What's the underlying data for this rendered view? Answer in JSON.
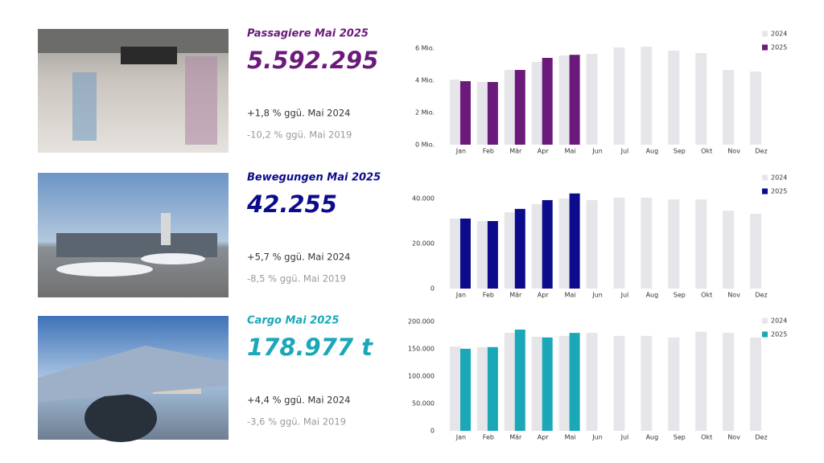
{
  "chart_data": [
    {
      "type": "bar",
      "title": "Passagiere Mai 2025",
      "headline": "5.592.295",
      "color": "#6b1a7b",
      "comparisons": [
        "+1,8 % ggü. Mai 2024",
        "-10,2 % ggü. Mai 2019"
      ],
      "categories": [
        "Jan",
        "Feb",
        "Mär",
        "Apr",
        "Mai",
        "Jun",
        "Jul",
        "Aug",
        "Sep",
        "Okt",
        "Nov",
        "Dez"
      ],
      "series": [
        {
          "name": "2024",
          "color": "#e6e6ea",
          "values": [
            4.05,
            3.9,
            4.65,
            5.15,
            5.55,
            5.65,
            6.05,
            6.1,
            5.85,
            5.7,
            4.65,
            4.55
          ]
        },
        {
          "name": "2025",
          "color": "#6b1a7b",
          "values": [
            3.95,
            3.9,
            4.65,
            5.4,
            5.59,
            null,
            null,
            null,
            null,
            null,
            null,
            null
          ]
        }
      ],
      "ylim": [
        0,
        6.6
      ],
      "yticks": [
        {
          "value": 0,
          "label": "0 Mio."
        },
        {
          "value": 2,
          "label": "2 Mio."
        },
        {
          "value": 4,
          "label": "4 Mio."
        },
        {
          "value": 6,
          "label": "6 Mio."
        }
      ]
    },
    {
      "type": "bar",
      "title": "Bewegungen Mai 2025",
      "headline": "42.255",
      "color": "#0b0b8c",
      "comparisons": [
        "+5,7 % ggü. Mai 2024",
        "-8,5 % ggü. Mai 2019"
      ],
      "categories": [
        "Jan",
        "Feb",
        "Mär",
        "Apr",
        "Mai",
        "Jun",
        "Jul",
        "Aug",
        "Sep",
        "Okt",
        "Nov",
        "Dez"
      ],
      "series": [
        {
          "name": "2024",
          "color": "#e6e6ea",
          "values": [
            31100,
            30000,
            33900,
            37500,
            40000,
            39300,
            40400,
            40400,
            39600,
            39600,
            34600,
            33200
          ]
        },
        {
          "name": "2025",
          "color": "#0b0b8c",
          "values": [
            31100,
            30000,
            35400,
            39300,
            42255,
            null,
            null,
            null,
            null,
            null,
            null,
            null
          ]
        }
      ],
      "ylim": [
        0,
        45000
      ],
      "yticks": [
        0,
        {
          "value": 20000,
          "label": "20.000"
        },
        {
          "value": 40000,
          "label": "40.000"
        }
      ]
    },
    {
      "type": "bar",
      "title": "Cargo Mai 2025",
      "headline": "178.977 t",
      "color": "#1aa8b8",
      "comparisons": [
        "+4,4 % ggü. Mai 2024",
        "-3,6 % ggü. Mai 2019"
      ],
      "categories": [
        "Jan",
        "Feb",
        "Mär",
        "Apr",
        "Mai",
        "Jun",
        "Jul",
        "Aug",
        "Sep",
        "Okt",
        "Nov",
        "Dez"
      ],
      "series": [
        {
          "name": "2024",
          "color": "#e6e6ea",
          "values": [
            154000,
            153000,
            179000,
            172000,
            173500,
            179000,
            173500,
            173500,
            170600,
            181000,
            179000,
            170600
          ]
        },
        {
          "name": "2025",
          "color": "#1aa8b8",
          "values": [
            150000,
            153000,
            185000,
            170600,
            178977,
            null,
            null,
            null,
            null,
            null,
            null,
            null
          ]
        }
      ],
      "ylim": [
        0,
        210000
      ],
      "yticks": [
        0,
        {
          "value": 50000,
          "label": "50.000"
        },
        {
          "value": 100000,
          "label": "100.000"
        },
        {
          "value": 150000,
          "label": "150.000"
        },
        {
          "value": 200000,
          "label": "200.000"
        }
      ]
    }
  ]
}
